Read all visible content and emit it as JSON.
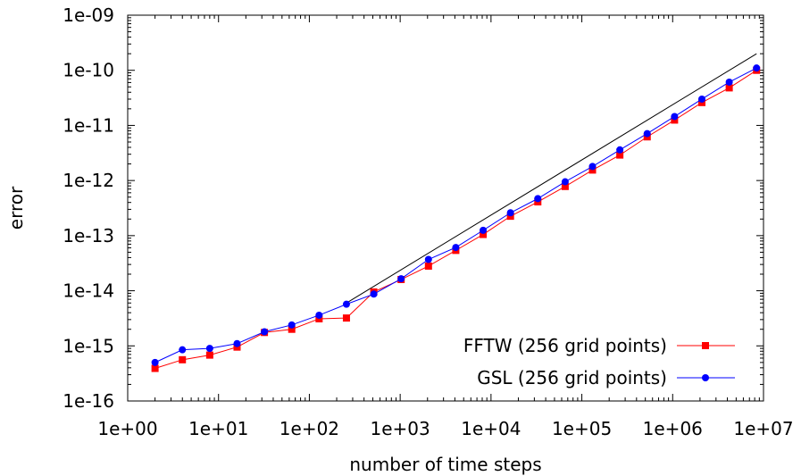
{
  "chart_data": {
    "type": "line",
    "title": "",
    "xlabel": "number of time steps",
    "ylabel": "error",
    "xscale": "log",
    "yscale": "log",
    "xlim": [
      1,
      10000000
    ],
    "ylim": [
      1e-16,
      1e-09
    ],
    "x_tick_labels": [
      "1e+00",
      "1e+01",
      "1e+02",
      "1e+03",
      "1e+04",
      "1e+05",
      "1e+06",
      "1e+07"
    ],
    "y_tick_labels": [
      "1e-16",
      "1e-15",
      "1e-14",
      "1e-13",
      "1e-12",
      "1e-11",
      "1e-10",
      "1e-09"
    ],
    "grid": false,
    "legend_position": "bottom-right",
    "x": [
      2,
      4,
      8,
      16,
      32,
      64,
      128,
      256,
      512,
      1024,
      2048,
      4096,
      8192,
      16384,
      32768,
      65536,
      131072,
      262144,
      524288,
      1048576,
      2097152,
      4194304,
      8388608
    ],
    "series": [
      {
        "name": "FFTW (256 grid points)",
        "color": "#ff0000",
        "marker": "square",
        "values": [
          3.9e-16,
          5.6e-16,
          6.8e-16,
          9.5e-16,
          1.75e-15,
          2e-15,
          3.1e-15,
          3.2e-15,
          9.5e-15,
          1.6e-14,
          2.8e-14,
          5.4e-14,
          1.05e-13,
          2.25e-13,
          4.1e-13,
          7.8e-13,
          1.55e-12,
          2.9e-12,
          6.2e-12,
          1.25e-11,
          2.6e-11,
          4.8e-11,
          1e-10
        ]
      },
      {
        "name": "GSL (256 grid points)",
        "color": "#0000ff",
        "marker": "circle",
        "values": [
          5e-16,
          8.5e-16,
          9e-16,
          1.1e-15,
          1.8e-15,
          2.4e-15,
          3.6e-15,
          5.7e-15,
          8.7e-15,
          1.65e-14,
          3.7e-14,
          6.1e-14,
          1.25e-13,
          2.6e-13,
          4.7e-13,
          9.5e-13,
          1.8e-12,
          3.6e-12,
          7.1e-12,
          1.45e-11,
          3e-11,
          6.1e-11,
          1.1e-10
        ]
      }
    ],
    "reference_line": {
      "color": "#000000",
      "x": [
        256,
        8388608
      ],
      "values": [
        6e-15,
        2e-10
      ]
    }
  }
}
